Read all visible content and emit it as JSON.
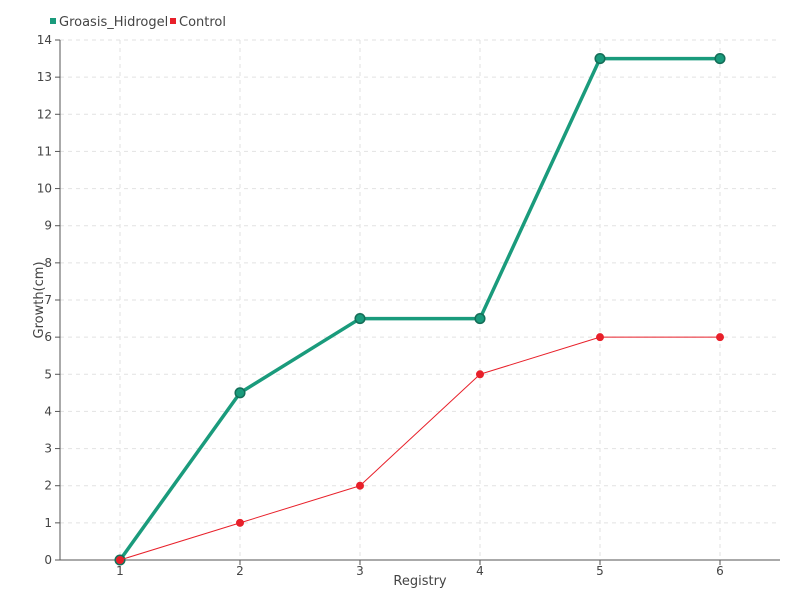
{
  "chart_data": {
    "type": "line",
    "title": "",
    "xlabel": "Registry",
    "ylabel": "Growth(cm)",
    "categories": [
      "1",
      "2",
      "3",
      "4",
      "5",
      "6"
    ],
    "yticks": [
      "0",
      "1",
      "2",
      "3",
      "4",
      "5",
      "6",
      "7",
      "8",
      "9",
      "10",
      "11",
      "12",
      "13",
      "14"
    ],
    "ylim": [
      0,
      14
    ],
    "grid": true,
    "legend_position": "top-left",
    "series": [
      {
        "name": "Groasis_Hidrogel",
        "color": "#1a9b7c",
        "values": [
          0,
          4.5,
          6.5,
          6.5,
          13.5,
          13.5
        ]
      },
      {
        "name": "Control",
        "color": "#e8202a",
        "values": [
          0,
          1,
          2,
          5,
          6,
          6
        ]
      }
    ]
  }
}
